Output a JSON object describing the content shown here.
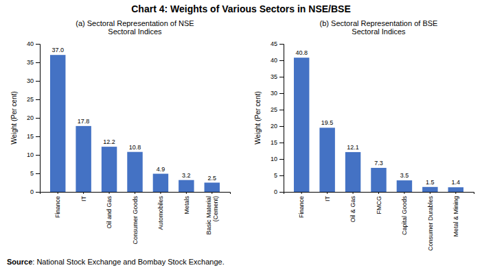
{
  "title": "Chart 4: Weights of Various Sectors in NSE/BSE",
  "annotations": [
    "Source",
    ": National Stock Exchange and Bombay Stock Exchange."
  ],
  "chart_data": [
    {
      "type": "bar",
      "title": "(a) Sectoral Representation of NSE\nSectoral Indices",
      "ylabel": "Weight (Per cent)",
      "categories": [
        "Finance",
        "IT",
        "Oil and Gas",
        "Consumer Goods",
        "Automobiles",
        "Metals",
        "Basic Material\n(Cement)"
      ],
      "values": [
        37.0,
        17.8,
        12.2,
        10.8,
        4.9,
        3.2,
        2.5
      ],
      "value_labels": [
        "37.0",
        "17.8",
        "12.2",
        "10.8",
        "4.9",
        "3.2",
        "2.5"
      ],
      "data_labels": true,
      "color": "#4472C4",
      "ylim": [
        0,
        40
      ],
      "yticks": [
        0,
        5,
        10,
        15,
        20,
        25,
        30,
        35,
        40
      ],
      "grid": false
    },
    {
      "type": "bar",
      "title": "(b) Sectoral Representation of BSE\nSectoral Indices",
      "ylabel": "Weight (Per cent)",
      "categories": [
        "Finance",
        "IT",
        "Oil & Gas",
        "FMCG",
        "Capital Goods",
        "Consumer Durables",
        "Metal & Mining"
      ],
      "values": [
        40.8,
        19.5,
        12.1,
        7.3,
        3.5,
        1.5,
        1.4
      ],
      "value_labels": [
        "40.8",
        "19.5",
        "12.1",
        "7.3",
        "3.5",
        "1.5",
        "1.4"
      ],
      "data_labels": true,
      "color": "#4472C4",
      "ylim": [
        0,
        45
      ],
      "yticks": [
        0,
        5,
        10,
        15,
        20,
        25,
        30,
        35,
        40,
        45
      ],
      "grid": false
    }
  ]
}
